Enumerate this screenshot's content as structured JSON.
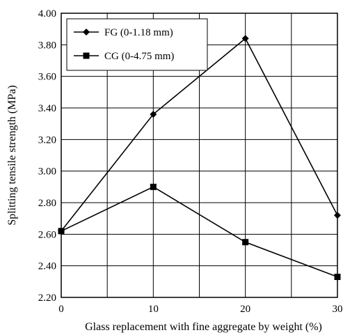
{
  "chart_data": {
    "type": "line",
    "xlabel": "Glass replacement with fine aggregate by weight (%)",
    "ylabel": "Splitting tensile strength (MPa)",
    "x": [
      0,
      10,
      20,
      30
    ],
    "xlim": [
      0,
      30
    ],
    "ylim": [
      2.2,
      4.0
    ],
    "xticks": [
      "0",
      "10",
      "20",
      "30"
    ],
    "yticks": [
      "2.20",
      "2.40",
      "2.60",
      "2.80",
      "3.00",
      "3.20",
      "3.40",
      "3.60",
      "3.80",
      "4.00"
    ],
    "grid": true,
    "legend_position": "top-left",
    "series": [
      {
        "name": "FG (0-1.18 mm)",
        "marker": "diamond",
        "values": [
          2.62,
          3.36,
          3.84,
          2.72
        ]
      },
      {
        "name": "CG (0-4.75 mm)",
        "marker": "square",
        "values": [
          2.62,
          2.9,
          2.55,
          2.33
        ]
      }
    ]
  }
}
